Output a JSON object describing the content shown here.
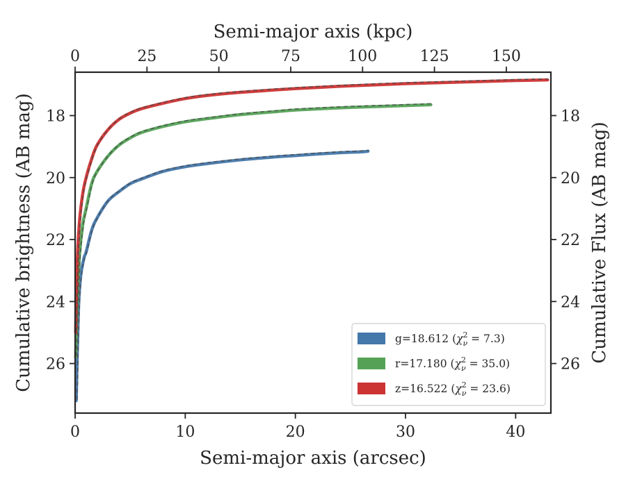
{
  "chart_data": {
    "type": "line",
    "title": "",
    "xlabel": "Semi-major axis (arcsec)",
    "ylabel": "Cumulative brightness (AB mag)",
    "x2label": "Semi-major axis (kpc)",
    "y2label": "Cumulative Flux (AB mag)",
    "xlim": [
      0,
      43.2
    ],
    "ylim": [
      27.6,
      16.6
    ],
    "y_inverted": true,
    "x2lim": [
      0,
      165.5
    ],
    "xticks": [
      0,
      10,
      20,
      30,
      40
    ],
    "yticks": [
      18,
      20,
      22,
      24,
      26
    ],
    "x2ticks": [
      0,
      25,
      50,
      75,
      100,
      125,
      150
    ],
    "grid": false,
    "legend_position": "lower-right",
    "series": [
      {
        "name": "g=18.612 (χ²ᵥ = 7.3)",
        "label_main": "g=18.612 (",
        "label_sym": "χ",
        "label_sup": "2",
        "label_sub": "ν",
        "label_tail": " = 7.3)",
        "color": "#4477aa",
        "x": [
          0.1,
          0.3,
          0.5,
          0.8,
          1.0,
          1.5,
          2.0,
          3.0,
          4.0,
          5.0,
          6.0,
          8.0,
          10.0,
          12.0,
          15.0,
          18.0,
          20.0,
          22.0,
          24.0,
          26.0,
          26.6
        ],
        "y": [
          27.2,
          24.3,
          23.2,
          22.6,
          22.4,
          21.7,
          21.3,
          20.75,
          20.45,
          20.2,
          20.05,
          19.8,
          19.65,
          19.55,
          19.43,
          19.34,
          19.29,
          19.24,
          19.2,
          19.17,
          19.15
        ]
      },
      {
        "name": "r=17.180 (χ²ᵥ = 35.0)",
        "label_main": "r=17.180 (",
        "label_sym": "χ",
        "label_sup": "2",
        "label_sub": "ν",
        "label_tail": " = 35.0)",
        "color": "#55a257",
        "x": [
          0.05,
          0.2,
          0.4,
          0.7,
          1.0,
          1.5,
          2.0,
          3.0,
          4.0,
          5.0,
          6.0,
          8.0,
          10.0,
          12.0,
          15.0,
          18.0,
          20.0,
          24.0,
          28.0,
          32.3
        ],
        "y": [
          25.8,
          24.0,
          22.5,
          21.5,
          21.0,
          20.2,
          19.8,
          19.3,
          18.95,
          18.72,
          18.55,
          18.35,
          18.2,
          18.1,
          17.97,
          17.88,
          17.82,
          17.75,
          17.7,
          17.65
        ]
      },
      {
        "name": "z=16.522 (χ²ᵥ = 23.6)",
        "label_main": "z=16.522 (",
        "label_sym": "χ",
        "label_sup": "2",
        "label_sub": "ν",
        "label_tail": " = 23.6)",
        "color": "#cc3333",
        "x": [
          0.05,
          0.2,
          0.4,
          0.7,
          1.0,
          1.5,
          2.0,
          3.0,
          4.0,
          5.0,
          6.0,
          8.0,
          10.0,
          12.0,
          15.0,
          20.0,
          25.0,
          30.0,
          35.0,
          40.0,
          42.9
        ],
        "y": [
          25.0,
          22.7,
          21.4,
          20.5,
          20.0,
          19.4,
          18.95,
          18.45,
          18.12,
          17.92,
          17.78,
          17.6,
          17.45,
          17.35,
          17.25,
          17.13,
          17.04,
          16.97,
          16.92,
          16.87,
          16.85
        ]
      }
    ]
  }
}
